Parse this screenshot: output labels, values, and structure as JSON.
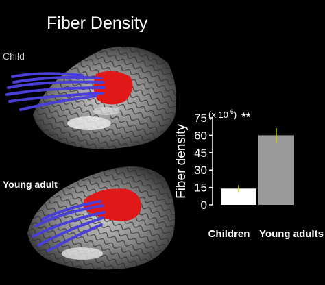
{
  "page": {
    "title": "Fiber Density",
    "panel_child_label": "Child",
    "panel_adult_label": "Young adult"
  },
  "chart_data": {
    "type": "bar",
    "categories": [
      "Children",
      "Young adults"
    ],
    "values": [
      14,
      60
    ],
    "errors": [
      3,
      6
    ],
    "ylabel": "Fiber density",
    "scale_note_base": "(x 10",
    "scale_note_exp": "-6",
    "scale_note_end": ")",
    "significance": "**",
    "ylim": [
      0,
      75
    ],
    "yticks": [
      0,
      15,
      30,
      45,
      60,
      75
    ],
    "bar_colors": [
      "#ffffff",
      "#9a9a9a"
    ],
    "error_color": "#c8d400",
    "grid": false
  }
}
